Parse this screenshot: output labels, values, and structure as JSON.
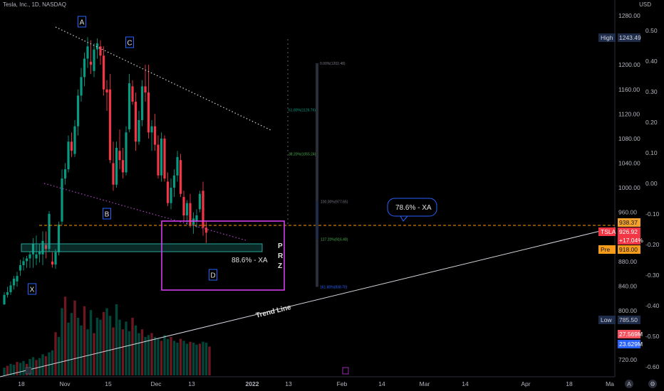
{
  "header": {
    "symbol_line": "Tesla, Inc., 1D, NASDAQ",
    "currency": "USD"
  },
  "chart_data": {
    "type": "candlestick",
    "title": "Tesla, Inc., 1D, NASDAQ",
    "price_axis": {
      "ticks": [
        720,
        760,
        800,
        840,
        880,
        920,
        960,
        1000,
        1040,
        1080,
        1120,
        1160,
        1200,
        1240,
        1280
      ],
      "tick_labels": [
        "720.00",
        "",
        "800.00",
        "840.00",
        "880.00",
        "",
        "960.00",
        "1000.00",
        "1040.00",
        "1080.00",
        "1120.00",
        "1160.00",
        "1200.00",
        "",
        "1280.00"
      ],
      "range": [
        708,
        1290
      ]
    },
    "percent_axis": {
      "ticks": [
        0.5,
        0.4,
        0.3,
        0.2,
        0.1,
        0.0,
        -0.1,
        -0.2,
        -0.3,
        -0.4,
        -0.5,
        -0.6
      ],
      "tick_labels": [
        "0.50",
        "0.40",
        "0.30",
        "0.20",
        "0.10",
        "0.00",
        "-0.10",
        "-0.20",
        "-0.30",
        "-0.40",
        "-0.50",
        "-0.60"
      ]
    },
    "x_axis": {
      "ticks": [
        "18",
        "Nov",
        "15",
        "Dec",
        "13",
        "2022",
        "13",
        "Feb",
        "14",
        "Mar",
        "14",
        "Apr",
        "18",
        "Ma"
      ],
      "bold": [
        "2022"
      ]
    },
    "candles": [
      [
        1,
        1,
        10,
        0.5,
        8
      ],
      [
        2,
        8,
        14,
        6,
        10
      ],
      [
        3,
        10,
        18,
        8,
        15
      ],
      [
        4,
        15,
        22,
        12,
        20
      ],
      [
        5,
        18,
        25,
        14,
        22
      ],
      [
        6,
        26,
        34,
        22,
        30
      ],
      [
        7,
        30,
        36,
        26,
        33
      ],
      [
        8,
        33,
        37,
        28,
        35
      ],
      [
        9,
        35,
        40,
        28,
        38
      ],
      [
        10,
        38,
        50,
        28,
        46
      ],
      [
        11,
        35,
        52,
        30,
        38
      ],
      [
        12,
        38,
        46,
        32,
        40
      ],
      [
        13,
        38,
        55,
        30,
        48
      ],
      [
        14,
        45,
        55,
        35,
        42
      ],
      [
        15,
        42,
        70,
        40,
        68
      ],
      [
        16,
        880,
        895,
        870,
        875
      ],
      [
        17,
        875,
        900,
        868,
        895
      ],
      [
        18,
        895,
        945,
        890,
        940
      ],
      [
        19,
        945,
        1030,
        940,
        1015
      ],
      [
        20,
        1015,
        1040,
        1005,
        1030
      ],
      [
        21,
        1030,
        1085,
        1025,
        1075
      ],
      [
        22,
        1075,
        1090,
        1050,
        1060
      ],
      [
        23,
        1055,
        1110,
        1050,
        1100
      ],
      [
        24,
        1100,
        1160,
        1085,
        1150
      ],
      [
        25,
        1150,
        1195,
        1140,
        1180
      ],
      [
        26,
        1180,
        1220,
        1165,
        1210
      ],
      [
        27,
        1210,
        1245,
        1195,
        1230
      ],
      [
        28,
        1205,
        1240,
        1185,
        1200
      ],
      [
        29,
        1190,
        1235,
        1180,
        1225
      ],
      [
        30,
        1225,
        1243,
        1210,
        1235
      ],
      [
        31,
        1230,
        1240,
        1200,
        1215
      ],
      [
        32,
        1215,
        1230,
        1150,
        1160
      ],
      [
        33,
        1160,
        1175,
        1125,
        1155
      ],
      [
        34,
        1160,
        1185,
        1040,
        1045
      ],
      [
        35,
        1040,
        1075,
        995,
        1005
      ],
      [
        36,
        1005,
        1075,
        1000,
        1065
      ],
      [
        37,
        1060,
        1095,
        1030,
        1045
      ],
      [
        38,
        1045,
        1065,
        1015,
        1025
      ],
      [
        39,
        1025,
        1100,
        1020,
        1090
      ],
      [
        40,
        1095,
        1185,
        1090,
        1170
      ],
      [
        41,
        1165,
        1175,
        1135,
        1140
      ],
      [
        42,
        1140,
        1155,
        1060,
        1075
      ],
      [
        43,
        1075,
        1125,
        1070,
        1110
      ],
      [
        44,
        1110,
        1175,
        1100,
        1165
      ],
      [
        45,
        1165,
        1200,
        1140,
        1155
      ],
      [
        46,
        1155,
        1200,
        1080,
        1090
      ],
      [
        47,
        1090,
        1110,
        1060,
        1100
      ],
      [
        48,
        1100,
        1120,
        1060,
        1070
      ],
      [
        49,
        1070,
        1085,
        1015,
        1020
      ],
      [
        50,
        1020,
        1090,
        1010,
        1080
      ],
      [
        51,
        1080,
        1085,
        1010,
        1015
      ],
      [
        52,
        1010,
        1025,
        970,
        975
      ],
      [
        53,
        975,
        1015,
        965,
        1000
      ],
      [
        54,
        1000,
        1030,
        985,
        1020
      ],
      [
        55,
        1020,
        1060,
        1010,
        1050
      ],
      [
        56,
        1045,
        1055,
        985,
        990
      ],
      [
        57,
        985,
        995,
        945,
        955
      ],
      [
        58,
        955,
        980,
        940,
        975
      ],
      [
        59,
        975,
        990,
        935,
        940
      ],
      [
        60,
        940,
        960,
        925,
        950
      ],
      [
        61,
        945,
        965,
        935,
        955
      ],
      [
        62,
        965,
        995,
        960,
        990
      ],
      [
        63,
        995,
        1010,
        922,
        935
      ],
      [
        64,
        935,
        945,
        910,
        926.92
      ]
    ],
    "candle_note": "rows are [index, open, high, low, close]; indices 1-15 are small pre-X candles given in offset units above 760",
    "volume": {
      "series": [
        {
          "name": "volume",
          "values": [
            8,
            10,
            12,
            11,
            14,
            13,
            15,
            12,
            17,
            19,
            16,
            18,
            22,
            20,
            24,
            26,
            45,
            40,
            70,
            82,
            55,
            65,
            78,
            60,
            52,
            72,
            48,
            68,
            44,
            60,
            58,
            66,
            70,
            62,
            50,
            74,
            58,
            48,
            56,
            46,
            60,
            52,
            44,
            48,
            40,
            42,
            44,
            40,
            38,
            36,
            42,
            38,
            40,
            36,
            34,
            38,
            36,
            33,
            35,
            34,
            32,
            33,
            35,
            34,
            30
          ]
        }
      ]
    },
    "annotations": {
      "points": [
        "X",
        "A",
        "B",
        "C",
        "D"
      ],
      "prz_label": "P R Z",
      "xa_ratio_label": "88.6% - XA",
      "callout": "78.6% - XA",
      "trend_line_label": "Trend Line",
      "fib_levels": [
        {
          "label": "0.00%(1202.48)",
          "price": 1202.48,
          "color": "#787b86"
        },
        {
          "label": "61.80%(1126.76)",
          "price": 1126.76,
          "color": "#089981"
        },
        {
          "label": "38.20%(1055.24)",
          "price": 1055.24,
          "color": "#4caf50"
        },
        {
          "label": "100.00%(977.65)",
          "price": 977.65,
          "color": "#787b86"
        },
        {
          "label": "127.20%(916.49)",
          "price": 916.49,
          "color": "#4caf50"
        },
        {
          "label": "161.80%(838.70)",
          "price": 838.7,
          "color": "#2962ff"
        }
      ]
    },
    "price_labels": [
      {
        "text": "High",
        "value": "1243.49",
        "bg": "#1e2c49",
        "fg": "#d1d4dc"
      },
      {
        "text": "",
        "value": "938.37",
        "bg": "#f7a22c",
        "fg": "#131722"
      },
      {
        "text": "TSLA",
        "value": "926.92",
        "bg": "#f23645",
        "fg": "#ffffff"
      },
      {
        "text": "",
        "value": "+17.04%",
        "bg": "#f23645",
        "fg": "#ffffff"
      },
      {
        "text": "Pre",
        "value": "918.00",
        "bg": "#f89c1c",
        "fg": "#131722"
      },
      {
        "text": "Low",
        "value": "785.50",
        "bg": "#1e2c49",
        "fg": "#d1d4dc"
      },
      {
        "text": "",
        "value": "27.569M",
        "bg": "#f7525f",
        "fg": "#ffffff"
      },
      {
        "text": "",
        "value": "23.629M",
        "bg": "#2962ff",
        "fg": "#ffffff"
      }
    ],
    "corner_buttons": [
      "A",
      "⚙"
    ],
    "colors": {
      "up": "#089981",
      "down": "#f23645",
      "wick_up": "#26a69a",
      "prz": "#e040fb",
      "zone": "#26a69a",
      "dashed": "#ff9800"
    }
  }
}
